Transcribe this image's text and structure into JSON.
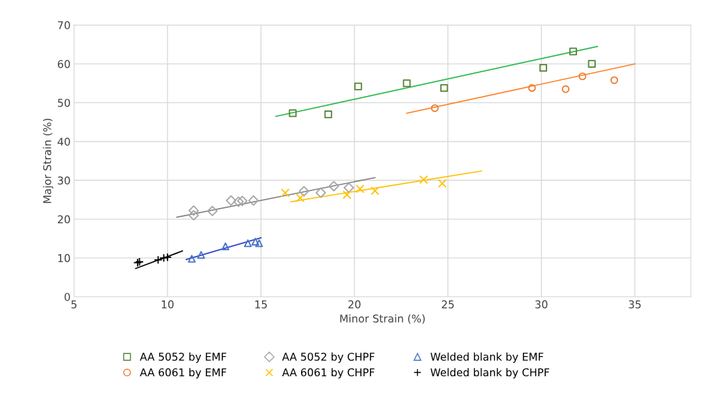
{
  "chart_data": {
    "type": "scatter",
    "xlabel": "Minor Strain (%)",
    "ylabel": "Major Strain (%)",
    "xlim": [
      5,
      38
    ],
    "xticks": [
      5,
      10,
      15,
      20,
      25,
      30,
      35
    ],
    "ylim": [
      0,
      70
    ],
    "yticks": [
      0,
      10,
      20,
      30,
      40,
      50,
      60,
      70
    ],
    "grid": true,
    "legend": "bottom",
    "series": [
      {
        "name": "AA 5052 by EMF",
        "color": "#548235",
        "marker": "square",
        "x": [
          16.7,
          18.6,
          20.2,
          22.8,
          24.8,
          30.1,
          31.7,
          32.7
        ],
        "values": [
          47.3,
          47,
          54.2,
          55,
          53.8,
          59,
          63.2,
          60
        ]
      },
      {
        "name": "AA 6061 by EMF",
        "color": "#ed7d31",
        "marker": "circle",
        "x": [
          24.3,
          29.5,
          31.3,
          32.2,
          33.9
        ],
        "values": [
          48.6,
          53.8,
          53.5,
          56.8,
          55.8
        ]
      },
      {
        "name": "AA 5052 by CHPF",
        "color": "#a5a5a5",
        "marker": "diamond",
        "x": [
          11.4,
          11.4,
          12.4,
          13.4,
          13.8,
          14.0,
          14.6,
          17.3,
          18.2,
          18.9,
          19.7
        ],
        "values": [
          21,
          22.2,
          22.1,
          24.8,
          24.5,
          24.7,
          24.8,
          27.2,
          26.8,
          28.5,
          28.1
        ]
      },
      {
        "name": "AA 6061 by CHPF",
        "color": "#ffc000",
        "marker": "cross",
        "x": [
          16.3,
          17.1,
          19.6,
          20.3,
          21.1,
          23.7,
          24.7
        ],
        "values": [
          26.8,
          25.5,
          26.3,
          27.8,
          27.3,
          30.2,
          29.2
        ]
      },
      {
        "name": "Welded blank by EMF",
        "color": "#4472c4",
        "marker": "triangle",
        "x": [
          11.3,
          11.8,
          13.1,
          14.3,
          14.7,
          14.9
        ],
        "values": [
          9.8,
          10.8,
          13,
          13.8,
          14.2,
          13.8
        ]
      },
      {
        "name": "Welded blank by CHPF",
        "color": "#000000",
        "marker": "plus",
        "x": [
          8.4,
          8.5,
          9.5,
          9.8,
          10.0
        ],
        "values": [
          8.8,
          9,
          9.5,
          10,
          10.2
        ]
      },
      {
        "type": "line",
        "color": "#2db84d",
        "x": [
          15.8,
          33
        ],
        "values": [
          46.5,
          64.5
        ]
      },
      {
        "type": "line",
        "color": "#ff7f27",
        "x": [
          22.8,
          35
        ],
        "values": [
          47.3,
          60
        ]
      },
      {
        "type": "line",
        "color": "#7f7f7f",
        "x": [
          10.5,
          21.1
        ],
        "values": [
          20.5,
          30.7
        ]
      },
      {
        "type": "line",
        "color": "#ffc000",
        "x": [
          16.6,
          26.8
        ],
        "values": [
          24.5,
          32.4
        ]
      },
      {
        "type": "line",
        "color": "#3344cc",
        "x": [
          11,
          15
        ],
        "values": [
          9.6,
          15.2
        ]
      },
      {
        "type": "line",
        "color": "#000000",
        "x": [
          8.3,
          10.8
        ],
        "values": [
          7.3,
          11.8
        ]
      }
    ]
  }
}
